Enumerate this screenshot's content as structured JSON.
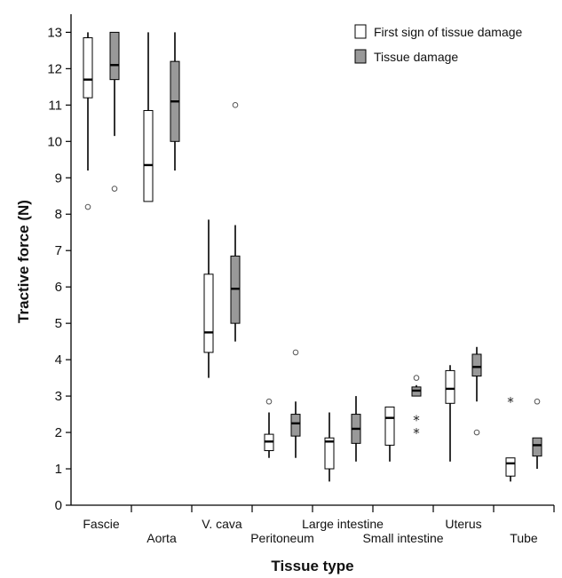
{
  "chart_data": {
    "type": "box",
    "xlabel": "Tissue type",
    "ylabel": "Tractive force (N)",
    "ylim": [
      0,
      13.4
    ],
    "yticks": [
      0,
      1,
      2,
      3,
      4,
      5,
      6,
      7,
      8,
      9,
      10,
      11,
      12,
      13
    ],
    "categories": [
      "Fascie",
      "Aorta",
      "V. cava",
      "Peritoneum",
      "Large intestine",
      "Small intestine",
      "Uterus",
      "Tube"
    ],
    "legend": {
      "position": "top-right",
      "entries": [
        {
          "label": "First sign of tissue damage",
          "color": "#ffffff"
        },
        {
          "label": "Tissue damage",
          "color": "#999999"
        }
      ]
    },
    "series": [
      {
        "name": "First sign of tissue damage",
        "color": "#ffffff",
        "boxes": [
          {
            "category": "Fascie",
            "min": 9.2,
            "q1": 11.2,
            "median": 11.7,
            "q3": 12.85,
            "max": 13.0,
            "outliers": [
              {
                "v": 8.2,
                "marker": "circle"
              }
            ]
          },
          {
            "category": "Aorta",
            "min": 8.35,
            "q1": 8.35,
            "median": 9.35,
            "q3": 10.85,
            "max": 13.0,
            "outliers": []
          },
          {
            "category": "V. cava",
            "min": 3.5,
            "q1": 4.2,
            "median": 4.75,
            "q3": 6.35,
            "max": 7.85,
            "outliers": []
          },
          {
            "category": "Peritoneum",
            "min": 1.3,
            "q1": 1.5,
            "median": 1.75,
            "q3": 1.95,
            "max": 2.55,
            "outliers": [
              {
                "v": 2.85,
                "marker": "circle"
              }
            ]
          },
          {
            "category": "Large intestine",
            "min": 0.65,
            "q1": 1.0,
            "median": 1.75,
            "q3": 1.85,
            "max": 2.55,
            "outliers": []
          },
          {
            "category": "Small intestine",
            "min": 1.2,
            "q1": 1.65,
            "median": 2.4,
            "q3": 2.7,
            "max": 2.7,
            "outliers": []
          },
          {
            "category": "Uterus",
            "min": 1.2,
            "q1": 2.8,
            "median": 3.2,
            "q3": 3.7,
            "max": 3.85,
            "outliers": []
          },
          {
            "category": "Tube",
            "min": 0.65,
            "q1": 0.8,
            "median": 1.15,
            "q3": 1.3,
            "max": 1.3,
            "outliers": [
              {
                "v": 2.85,
                "marker": "star"
              }
            ]
          }
        ]
      },
      {
        "name": "Tissue damage",
        "color": "#999999",
        "boxes": [
          {
            "category": "Fascie",
            "min": 10.15,
            "q1": 11.7,
            "median": 12.1,
            "q3": 13.0,
            "max": 13.0,
            "outliers": [
              {
                "v": 8.7,
                "marker": "circle"
              }
            ]
          },
          {
            "category": "Aorta",
            "min": 9.2,
            "q1": 10.0,
            "median": 11.1,
            "q3": 12.2,
            "max": 13.0,
            "outliers": []
          },
          {
            "category": "V. cava",
            "min": 4.5,
            "q1": 5.0,
            "median": 5.95,
            "q3": 6.85,
            "max": 7.7,
            "outliers": [
              {
                "v": 11.0,
                "marker": "circle"
              }
            ]
          },
          {
            "category": "Peritoneum",
            "min": 1.3,
            "q1": 1.9,
            "median": 2.25,
            "q3": 2.5,
            "max": 2.85,
            "outliers": [
              {
                "v": 4.2,
                "marker": "circle"
              }
            ]
          },
          {
            "category": "Large intestine",
            "min": 1.2,
            "q1": 1.7,
            "median": 2.1,
            "q3": 2.5,
            "max": 3.0,
            "outliers": []
          },
          {
            "category": "Small intestine",
            "min": 3.0,
            "q1": 3.0,
            "median": 3.15,
            "q3": 3.25,
            "max": 3.3,
            "outliers": [
              {
                "v": 3.5,
                "marker": "circle"
              },
              {
                "v": 2.35,
                "marker": "star"
              },
              {
                "v": 2.0,
                "marker": "star"
              }
            ]
          },
          {
            "category": "Uterus",
            "min": 2.85,
            "q1": 3.55,
            "median": 3.8,
            "q3": 4.15,
            "max": 4.35,
            "outliers": [
              {
                "v": 2.0,
                "marker": "circle"
              }
            ]
          },
          {
            "category": "Tube",
            "min": 1.0,
            "q1": 1.35,
            "median": 1.65,
            "q3": 1.85,
            "max": 1.85,
            "outliers": [
              {
                "v": 2.85,
                "marker": "circle"
              }
            ]
          }
        ]
      }
    ]
  }
}
